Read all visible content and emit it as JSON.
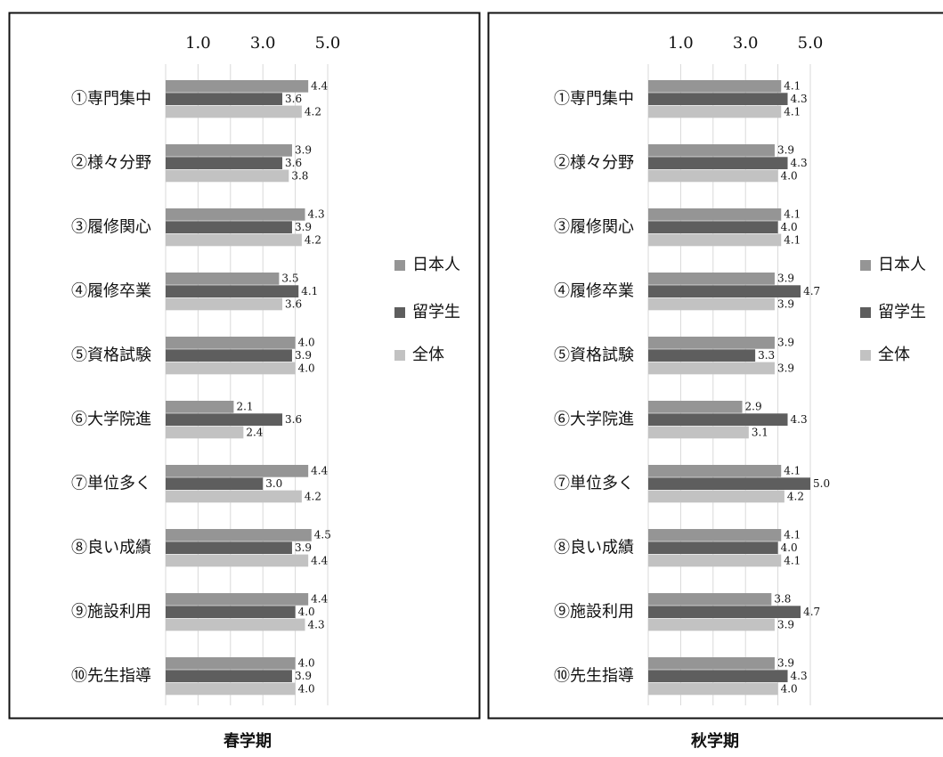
{
  "colors": {
    "日本人": "#959595",
    "留学生": "#5e5e5e",
    "全体": "#c2c2c2",
    "grid": "#d9d9d9",
    "frame": "#111111"
  },
  "chart_data": [
    {
      "type": "bar",
      "orientation": "horizontal",
      "title": "春学期",
      "xlim": [
        0,
        5
      ],
      "ticks": [
        "1.0",
        "3.0",
        "5.0"
      ],
      "tick_values": [
        1,
        3,
        5
      ],
      "grid": true,
      "legend_position": "right",
      "categories": [
        "①専門集中",
        "②様々分野",
        "③履修関心",
        "④履修卒業",
        "⑤資格試験",
        "⑥大学院進",
        "⑦単位多く",
        "⑧良い成績",
        "⑨施設利用",
        "⑩先生指導"
      ],
      "series": [
        {
          "name": "日本人",
          "values": [
            4.4,
            3.9,
            4.3,
            3.5,
            4.0,
            2.1,
            4.4,
            4.5,
            4.4,
            4.0
          ]
        },
        {
          "name": "留学生",
          "values": [
            3.6,
            3.6,
            3.9,
            4.1,
            3.9,
            3.6,
            3.0,
            3.9,
            4.0,
            3.9
          ]
        },
        {
          "name": "全体",
          "values": [
            4.2,
            3.8,
            4.2,
            3.6,
            4.0,
            2.4,
            4.2,
            4.4,
            4.3,
            4.0
          ]
        }
      ]
    },
    {
      "type": "bar",
      "orientation": "horizontal",
      "title": "秋学期",
      "xlim": [
        0,
        5
      ],
      "ticks": [
        "1.0",
        "3.0",
        "5.0"
      ],
      "tick_values": [
        1,
        3,
        5
      ],
      "grid": true,
      "legend_position": "right",
      "categories": [
        "①専門集中",
        "②様々分野",
        "③履修関心",
        "④履修卒業",
        "⑤資格試験",
        "⑥大学院進",
        "⑦単位多く",
        "⑧良い成績",
        "⑨施設利用",
        "⑩先生指導"
      ],
      "series": [
        {
          "name": "日本人",
          "values": [
            4.1,
            3.9,
            4.1,
            3.9,
            3.9,
            2.9,
            4.1,
            4.1,
            3.8,
            3.9
          ]
        },
        {
          "name": "留学生",
          "values": [
            4.3,
            4.3,
            4.0,
            4.7,
            3.3,
            4.3,
            5.0,
            4.0,
            4.7,
            4.3
          ]
        },
        {
          "name": "全体",
          "values": [
            4.1,
            4.0,
            4.1,
            3.9,
            3.9,
            3.1,
            4.2,
            4.1,
            3.9,
            4.0
          ]
        }
      ]
    }
  ]
}
